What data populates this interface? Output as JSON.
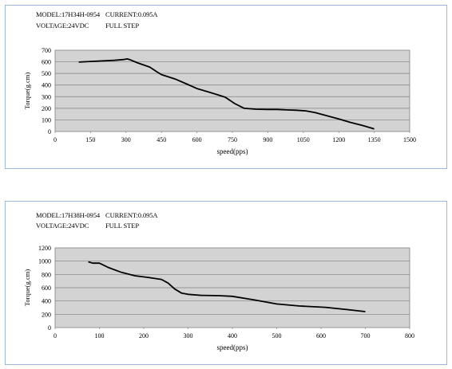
{
  "charts": [
    {
      "model": "MODEL:17H34H-0954",
      "current": "CURRENT:0.095A",
      "voltage": "VOLTAGE:24VDC",
      "step": "FULL  STEP"
    },
    {
      "model": "MODEL:17H38H-0954",
      "current": "CURRENT:0.095A",
      "voltage": "VOLTAGE:24VDC",
      "step": "FULL  STEP"
    }
  ],
  "colors": {
    "plot_bg": "#d3d3d3",
    "line": "#000000",
    "grid": "#808080",
    "panel_border": "#9db7d6"
  },
  "chart_data": [
    {
      "type": "line",
      "x_scale": "categorical",
      "xlabel": "speed(pps)",
      "ylabel": "Torque(g.cm)",
      "x_ticks": [
        "0",
        "150",
        "300",
        "450",
        "600",
        "750",
        "900",
        "1050",
        "1200",
        "1350",
        "1500"
      ],
      "y_ticks": [
        "0",
        "100",
        "200",
        "300",
        "400",
        "500",
        "600",
        "700"
      ],
      "ylim": [
        0,
        700
      ],
      "grid": true,
      "legend": "none",
      "series": [
        {
          "x": [
            100,
            150,
            200,
            250,
            290,
            305,
            315,
            350,
            400,
            430,
            450,
            480,
            510,
            550,
            600,
            650,
            690,
            720,
            760,
            800,
            850,
            900,
            940,
            980,
            1020,
            1060,
            1100,
            1150,
            1200,
            1250,
            1300,
            1350
          ],
          "y": [
            598,
            603,
            608,
            613,
            620,
            625,
            620,
            590,
            555,
            515,
            490,
            470,
            450,
            415,
            370,
            340,
            315,
            295,
            240,
            200,
            192,
            190,
            190,
            186,
            183,
            178,
            163,
            135,
            108,
            78,
            52,
            22
          ]
        }
      ]
    },
    {
      "type": "line",
      "xlabel": "speed(pps)",
      "ylabel": "Torque(g.cm)",
      "x_ticks": [
        "0",
        "100",
        "200",
        "300",
        "400",
        "500",
        "600",
        "700",
        "800"
      ],
      "y_ticks": [
        "0",
        "200",
        "400",
        "600",
        "800",
        "1000",
        "1200"
      ],
      "xlim": [
        0,
        800
      ],
      "ylim": [
        0,
        1200
      ],
      "grid": true,
      "legend": "none",
      "series": [
        {
          "x": [
            75,
            85,
            100,
            120,
            150,
            180,
            210,
            240,
            255,
            270,
            285,
            300,
            330,
            370,
            400,
            450,
            500,
            550,
            610,
            660,
            700
          ],
          "y": [
            990,
            970,
            970,
            905,
            830,
            780,
            755,
            725,
            670,
            580,
            520,
            500,
            485,
            480,
            470,
            415,
            355,
            325,
            305,
            270,
            240
          ]
        }
      ]
    }
  ]
}
